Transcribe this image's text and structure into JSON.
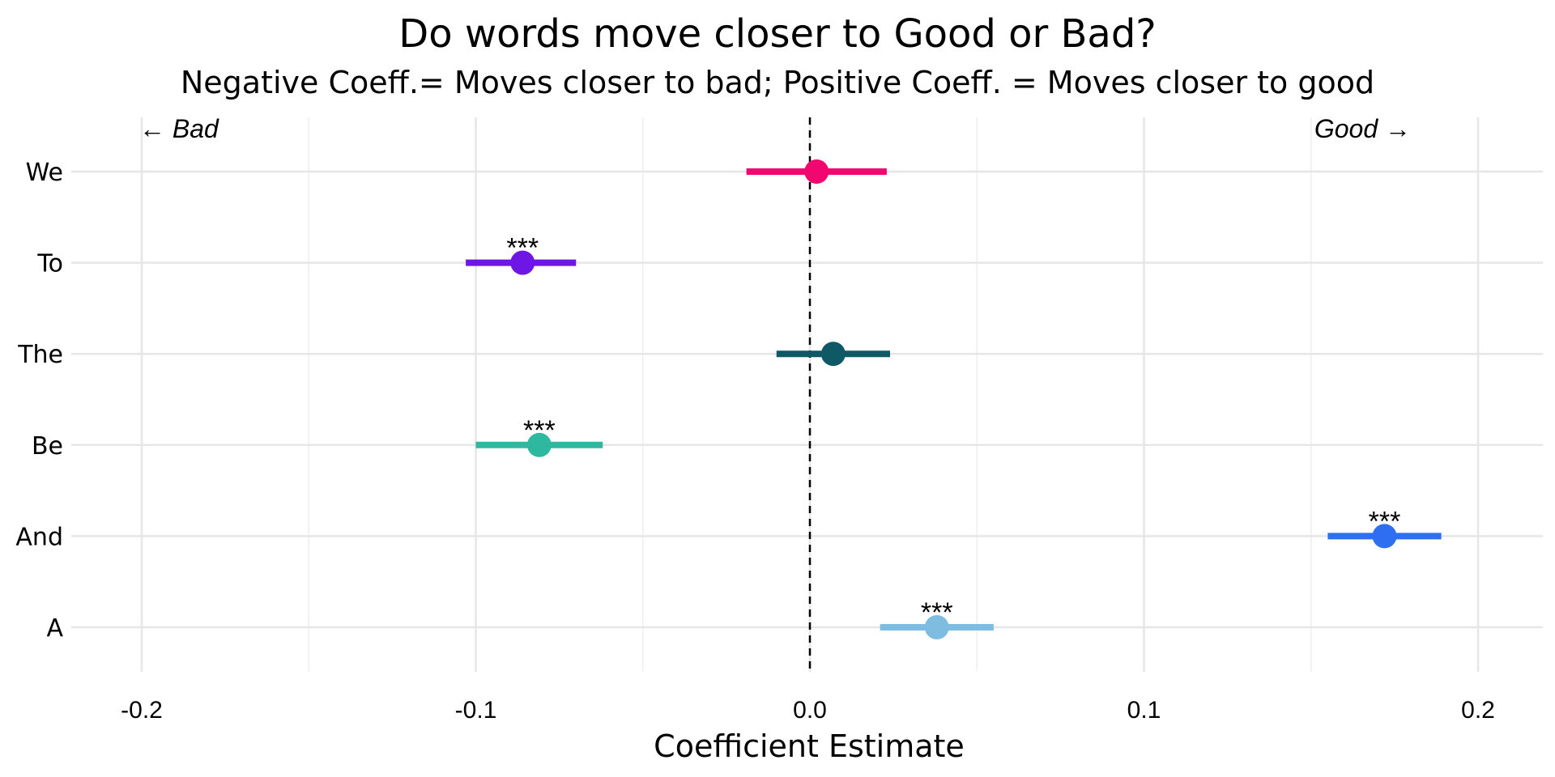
{
  "chart_data": {
    "type": "scatter",
    "title": "Do words move closer to Good or Bad?",
    "subtitle": "Negative Coeff.= Moves closer to bad; Positive Coeff. = Moves closer to good",
    "xlabel": "Coefficient Estimate",
    "ylabel": "",
    "xlim": [
      -0.222,
      0.22
    ],
    "x_ticks": [
      -0.2,
      -0.1,
      0.0,
      0.1,
      0.2
    ],
    "x_tick_labels": [
      "-0.2",
      "-0.1",
      "0.0",
      "0.1",
      "0.2"
    ],
    "grid": true,
    "reference_line_x": 0,
    "annotations": {
      "left": "← Bad",
      "right": "Good →"
    },
    "categories": [
      "We",
      "To",
      "The",
      "Be",
      "And",
      "A"
    ],
    "points": [
      {
        "label": "We",
        "estimate": 0.002,
        "ci_low": -0.019,
        "ci_high": 0.023,
        "significance": "",
        "color": "#f0076f"
      },
      {
        "label": "To",
        "estimate": -0.086,
        "ci_low": -0.103,
        "ci_high": -0.07,
        "significance": "***",
        "color": "#6d16e6"
      },
      {
        "label": "The",
        "estimate": 0.007,
        "ci_low": -0.01,
        "ci_high": 0.024,
        "significance": "",
        "color": "#0f5865"
      },
      {
        "label": "Be",
        "estimate": -0.081,
        "ci_low": -0.1,
        "ci_high": -0.062,
        "significance": "***",
        "color": "#2fb8a0"
      },
      {
        "label": "And",
        "estimate": 0.172,
        "ci_low": 0.155,
        "ci_high": 0.189,
        "significance": "***",
        "color": "#2e6ff2"
      },
      {
        "label": "A",
        "estimate": 0.038,
        "ci_low": 0.021,
        "ci_high": 0.055,
        "significance": "***",
        "color": "#7fbde0"
      }
    ]
  }
}
